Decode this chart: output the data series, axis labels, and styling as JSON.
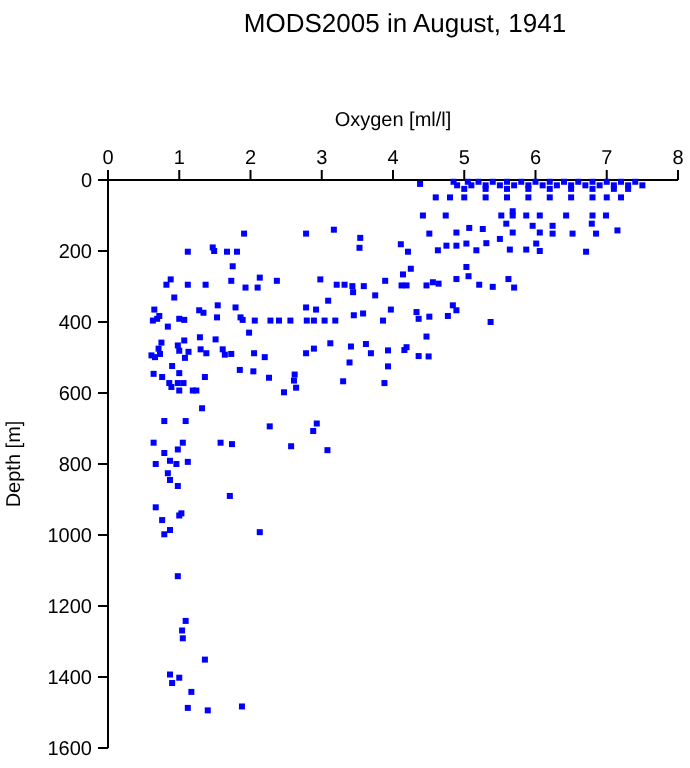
{
  "chart_data": {
    "type": "scatter",
    "title": "MODS2005 in August, 1941",
    "xlabel": "Oxygen [ml/l]",
    "ylabel": "Depth [m]",
    "xlim": [
      0,
      8
    ],
    "xticks": [
      0,
      1,
      2,
      3,
      4,
      5,
      6,
      7,
      8
    ],
    "ylim": [
      1600,
      0
    ],
    "yticks": [
      0,
      200,
      400,
      600,
      800,
      1000,
      1200,
      1400,
      1600
    ],
    "marker": "square",
    "series": [
      {
        "color": "#0000ff",
        "x": [
          4.85,
          5.05,
          5.2,
          5.4,
          5.6,
          5.8,
          6.0,
          6.2,
          6.4,
          6.6,
          6.8,
          7.0,
          7.2,
          7.4,
          4.9,
          5.1,
          5.3,
          5.5,
          5.7,
          5.9,
          6.1,
          6.3,
          6.5,
          6.7,
          6.9,
          7.1,
          7.3,
          7.5,
          5.0,
          5.3,
          5.6,
          5.9,
          6.2,
          6.5,
          6.8,
          7.1,
          7.3,
          4.6,
          4.8,
          5.0,
          5.3,
          5.6,
          5.9,
          6.2,
          6.5,
          6.8,
          7.0,
          7.2,
          4.38,
          4.42,
          4.74,
          5.52,
          5.68,
          5.87,
          6.06,
          6.43,
          6.8,
          6.99,
          5.68,
          5.59,
          5.96,
          6.24,
          4.51,
          4.89,
          5.07,
          5.26,
          5.5,
          5.68,
          6.06,
          6.24,
          6.52,
          6.79,
          6.85,
          7.15,
          4.11,
          4.21,
          4.63,
          4.75,
          4.89,
          5.03,
          5.17,
          5.31,
          5.64,
          5.87,
          6.01,
          6.06,
          6.71,
          4.25,
          4.14,
          3.89,
          4.12,
          4.19,
          4.47,
          4.56,
          4.64,
          4.89,
          5.06,
          5.03,
          5.21,
          5.4,
          5.62,
          5.7,
          3.44,
          3.86,
          3.97,
          4.33,
          4.36,
          4.51,
          4.77,
          4.84,
          4.89,
          5.37,
          4.47,
          3.93,
          4.19,
          4.16,
          4.36,
          4.5,
          3.93,
          3.88,
          1.91,
          1.12,
          1.47,
          1.49,
          1.67,
          1.81,
          1.75,
          2.78,
          3.17,
          3.54,
          3.53,
          0.88,
          0.82,
          1.12,
          1.37,
          0.93,
          1.73,
          1.93,
          2.1,
          2.13,
          2.37,
          2.98,
          3.21,
          3.32,
          3.43,
          3.59,
          3.75,
          0.65,
          0.69,
          0.63,
          0.72,
          0.84,
          1.0,
          1.07,
          1.28,
          1.34,
          1.54,
          1.53,
          1.79,
          1.86,
          1.89,
          1.98,
          2.06,
          2.28,
          2.4,
          2.56,
          2.78,
          2.92,
          2.79,
          2.89,
          3.04,
          3.09,
          3.19,
          3.45,
          3.58,
          0.75,
          0.71,
          0.61,
          0.66,
          0.73,
          0.98,
          1.0,
          1.07,
          1.13,
          1.08,
          1.3,
          1.38,
          1.29,
          1.51,
          1.61,
          1.64,
          1.73,
          2.05,
          2.2,
          1.85,
          2.04,
          2.78,
          2.89,
          3.12,
          3.41,
          3.62,
          3.69,
          3.39,
          3.3,
          0.64,
          0.76,
          0.86,
          0.89,
          0.98,
          1.06,
          1.0,
          1.19,
          1.24,
          0.9,
          1.0,
          1.36,
          1.32,
          2.26,
          2.47,
          2.62,
          2.64,
          2.61,
          2.27,
          2.57,
          2.88,
          2.93,
          0.79,
          1.09,
          0.64,
          0.79,
          0.98,
          1.05,
          1.58,
          1.74,
          3.08,
          0.67,
          0.87,
          0.96,
          1.12,
          0.84,
          0.87,
          0.98,
          1.71,
          0.67,
          0.76,
          1.03,
          1.0,
          0.87,
          0.79,
          2.13,
          0.98,
          1.09,
          1.04,
          1.05,
          1.36,
          0.87,
          1.0,
          0.9,
          1.17,
          1.12,
          1.4,
          1.88
        ],
        "values": [
          5,
          5,
          5,
          5,
          5,
          5,
          5,
          5,
          5,
          5,
          5,
          5,
          5,
          5,
          15,
          15,
          15,
          15,
          15,
          15,
          15,
          15,
          15,
          15,
          15,
          15,
          15,
          15,
          25,
          25,
          25,
          25,
          25,
          25,
          25,
          25,
          25,
          49,
          49,
          49,
          49,
          49,
          49,
          49,
          49,
          49,
          49,
          49,
          11,
          100,
          100,
          100,
          100,
          100,
          100,
          100,
          100,
          100,
          88,
          123,
          129,
          129,
          151,
          148,
          135,
          138,
          166,
          148,
          148,
          151,
          151,
          123,
          151,
          142,
          181,
          202,
          198,
          185,
          185,
          179,
          198,
          178,
          196,
          196,
          179,
          200,
          202,
          250,
          266,
          284,
          297,
          297,
          297,
          288,
          292,
          279,
          271,
          245,
          295,
          301,
          279,
          303,
          316,
          396,
          365,
          372,
          391,
          385,
          383,
          353,
          367,
          400,
          441,
          480,
          471,
          479,
          496,
          497,
          525,
          572,
          151,
          202,
          190,
          200,
          202,
          202,
          243,
          151,
          140,
          163,
          191,
          280,
          295,
          295,
          295,
          331,
          284,
          303,
          303,
          275,
          284,
          280,
          295,
          295,
          299,
          299,
          325,
          365,
          391,
          396,
          383,
          413,
          391,
          394,
          367,
          374,
          353,
          387,
          359,
          387,
          394,
          430,
          396,
          396,
          396,
          396,
          359,
          365,
          396,
          396,
          396,
          340,
          396,
          381,
          376,
          458,
          475,
          494,
          499,
          490,
          466,
          481,
          452,
          484,
          501,
          477,
          488,
          443,
          449,
          477,
          492,
          490,
          488,
          499,
          535,
          539,
          488,
          475,
          460,
          469,
          462,
          488,
          514,
          567,
          546,
          555,
          572,
          583,
          572,
          572,
          593,
          593,
          593,
          524,
          544,
          555,
          643,
          557,
          598,
          548,
          585,
          565,
          694,
          750,
          707,
          686,
          679,
          679,
          740,
          769,
          759,
          740,
          740,
          744,
          761,
          800,
          791,
          800,
          794,
          826,
          845,
          862,
          890,
          922,
          958,
          939,
          945,
          986,
          998,
          992,
          1116,
          1242,
          1269,
          1291,
          1351,
          1393,
          1402,
          1417,
          1442,
          1487,
          1494,
          1483
        ]
      }
    ]
  }
}
